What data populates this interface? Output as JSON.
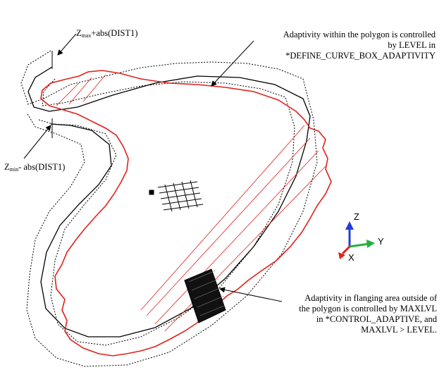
{
  "labels": {
    "zmax": {
      "sym": "Z",
      "sub": "max",
      "text": "+abs(DIST1)"
    },
    "zmin": {
      "sym": "Z",
      "sub": "min",
      "text": "- abs(DIST1)"
    },
    "polygon_note": [
      "Adaptivity within the polygon is  controlled",
      "by LEVEL in",
      "*DEFINE_CURVE_BOX_ADAPTIVITY"
    ],
    "flange_note": [
      "Adaptivity in flanging area outside of",
      "the polygon is controlled by MAXLVL",
      "in *CONTROL_ADAPTIVE, and",
      "MAXLVL > LEVEL."
    ]
  },
  "axes": {
    "z": "Z",
    "y": "Y",
    "x": "X"
  },
  "colors": {
    "part_outline": "#e0201b",
    "polygon_line": "#000000",
    "offset_line": "#000000",
    "axis_z": "#1f3fd6",
    "axis_y": "#1fb33a",
    "axis_x": "#e0201b"
  }
}
